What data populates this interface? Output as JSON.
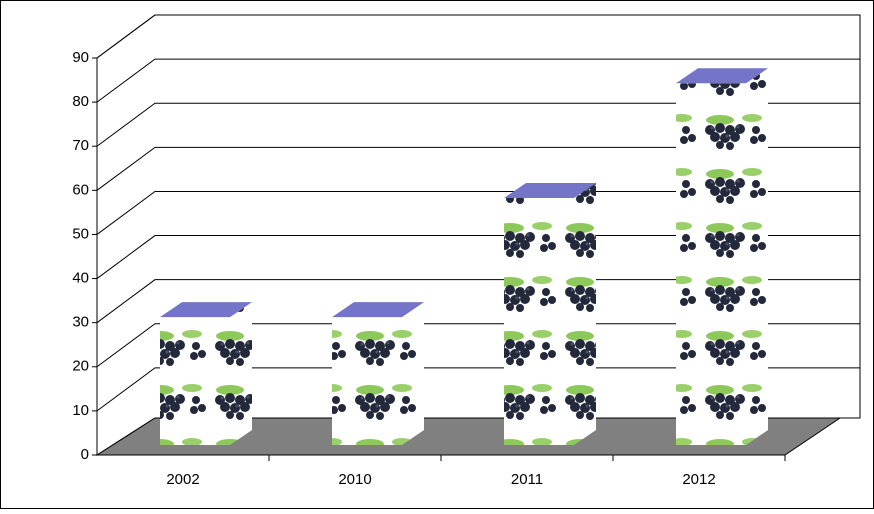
{
  "chart_data": {
    "type": "bar3d",
    "categories": [
      "2002",
      "2010",
      "2011",
      "2012"
    ],
    "values": [
      29,
      29,
      56,
      82
    ],
    "top_color": "#7474c8",
    "ylim": [
      0,
      90
    ],
    "yticks": [
      0,
      10,
      20,
      30,
      40,
      50,
      60,
      70,
      80,
      90
    ],
    "grid": true
  }
}
